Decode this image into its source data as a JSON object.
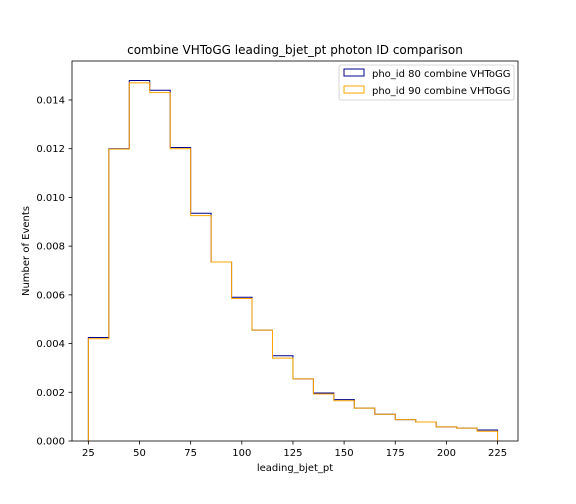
{
  "chart_data": {
    "type": "step-histogram",
    "title": "combine VHToGG leading_bjet_pt photon ID comparison",
    "xlabel": "leading_bjet_pt",
    "ylabel": "Number of Events",
    "xlim": [
      17,
      235
    ],
    "ylim": [
      0,
      0.0156
    ],
    "xticks": [
      25,
      50,
      75,
      100,
      125,
      150,
      175,
      200,
      225
    ],
    "yticks": [
      0.0,
      0.002,
      0.004,
      0.006,
      0.008,
      0.01,
      0.012,
      0.014
    ],
    "ytick_labels": [
      "0.000",
      "0.002",
      "0.004",
      "0.006",
      "0.008",
      "0.010",
      "0.012",
      "0.014"
    ],
    "bin_edges": [
      25,
      35,
      45,
      55,
      65,
      75,
      85,
      95,
      105,
      115,
      125,
      135,
      145,
      155,
      165,
      175,
      185,
      195,
      205,
      215,
      225
    ],
    "legend_position": "upper right",
    "series": [
      {
        "name": "pho_id 80 combine VHToGG",
        "color": "#00008b",
        "values": [
          0.00425,
          0.012,
          0.0148,
          0.0144,
          0.01205,
          0.00935,
          0.00735,
          0.0059,
          0.00455,
          0.0035,
          0.00255,
          0.00197,
          0.0017,
          0.00135,
          0.0011,
          0.00088,
          0.00078,
          0.00058,
          0.00053,
          0.00045
        ]
      },
      {
        "name": "pho_id 90 combine VHToGG",
        "color": "#ffa500",
        "values": [
          0.0042,
          0.01198,
          0.0147,
          0.0143,
          0.012,
          0.00925,
          0.00735,
          0.00585,
          0.00455,
          0.0034,
          0.00255,
          0.00193,
          0.00165,
          0.00135,
          0.0011,
          0.00088,
          0.00078,
          0.00058,
          0.00053,
          0.0004
        ]
      }
    ]
  }
}
